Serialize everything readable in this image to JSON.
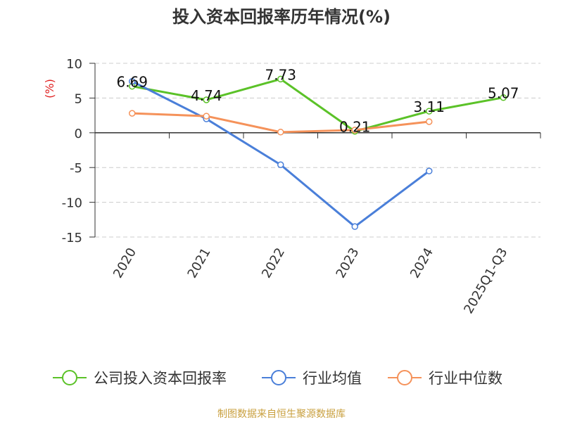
{
  "chart_data": {
    "type": "line",
    "title": "投入资本回报率历年情况(%)",
    "ylabel": "(%)",
    "xlabel": "",
    "categories": [
      "2020",
      "2021",
      "2022",
      "2023",
      "2024",
      "2025Q1-Q3"
    ],
    "ylim": [
      -15,
      10
    ],
    "yticks": [
      10,
      5,
      0,
      -5,
      -10,
      -15
    ],
    "grid": true,
    "legend_position": "bottom",
    "series": [
      {
        "name": "公司投入资本回报率",
        "color": "#5bc228",
        "values": [
          6.69,
          4.74,
          7.73,
          0.21,
          3.11,
          5.07
        ],
        "labels": [
          "6.69",
          "4.74",
          "7.73",
          "0.21",
          "3.11",
          "5.07"
        ]
      },
      {
        "name": "行业均值",
        "color": "#4a7fd9",
        "values": [
          7.4,
          2.0,
          -4.6,
          -13.5,
          -5.5,
          null
        ]
      },
      {
        "name": "行业中位数",
        "color": "#f5925a",
        "values": [
          2.8,
          2.4,
          0.1,
          0.4,
          1.6,
          null
        ]
      }
    ]
  },
  "source_text": "制图数据来自恒生聚源数据库"
}
